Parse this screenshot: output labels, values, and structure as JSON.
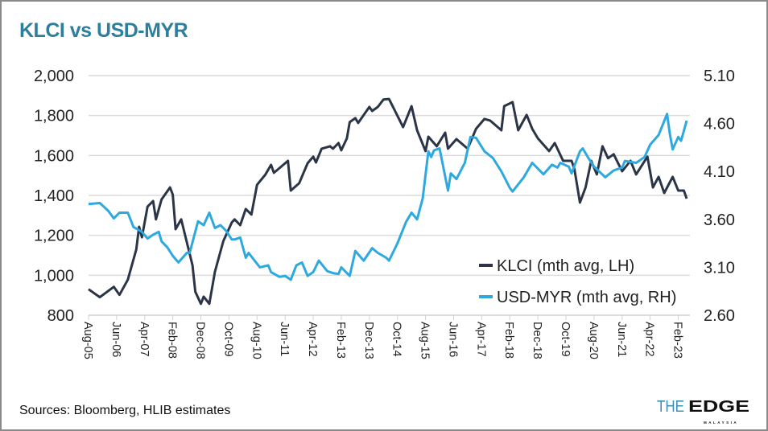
{
  "chart_data": {
    "type": "line",
    "title": "KLCI vs USD-MYR",
    "source": "Sources: Bloomberg, HLIB estimates",
    "logo": {
      "text": "THEEDGE",
      "subtext": "MALAYSIA"
    },
    "x_tick_labels": [
      "Aug-05",
      "Jun-06",
      "Apr-07",
      "Feb-08",
      "Dec-08",
      "Oct-09",
      "Aug-10",
      "Jun-11",
      "Apr-12",
      "Feb-13",
      "Dec-13",
      "Oct-14",
      "Aug-15",
      "Jun-16",
      "Apr-17",
      "Feb-18",
      "Dec-18",
      "Oct-19",
      "Aug-20",
      "Jun-21",
      "Apr-22",
      "Feb-23"
    ],
    "x_tick_dates": [
      "2005-08",
      "2006-06",
      "2007-04",
      "2008-02",
      "2008-12",
      "2009-10",
      "2010-08",
      "2011-06",
      "2012-04",
      "2013-02",
      "2013-12",
      "2014-10",
      "2015-08",
      "2016-06",
      "2017-04",
      "2018-02",
      "2018-12",
      "2019-10",
      "2020-08",
      "2021-06",
      "2022-04",
      "2023-02"
    ],
    "xlim": [
      "2005-08",
      "2023-05"
    ],
    "y_left": {
      "lim": [
        800,
        2000
      ],
      "ticks": [
        800,
        1000,
        1200,
        1400,
        1600,
        1800,
        2000
      ],
      "tick_labels": [
        "800",
        "1,000",
        "1,200",
        "1,400",
        "1,600",
        "1,800",
        "2,000"
      ]
    },
    "y_right": {
      "lim": [
        2.6,
        5.1
      ],
      "ticks": [
        2.6,
        3.1,
        3.6,
        4.1,
        4.6,
        5.1
      ],
      "tick_labels": [
        "2.60",
        "3.10",
        "3.60",
        "4.10",
        "4.60",
        "5.10"
      ]
    },
    "grid": true,
    "legend_position": "bottom-right",
    "series": [
      {
        "name": "KLCI (mth avg, LH)",
        "axis": "left",
        "color": "#2b3547",
        "points": [
          [
            "2005-08",
            930
          ],
          [
            "2005-12",
            890
          ],
          [
            "2006-05",
            942
          ],
          [
            "2006-07",
            902
          ],
          [
            "2006-10",
            978
          ],
          [
            "2007-01",
            1130
          ],
          [
            "2007-02",
            1243
          ],
          [
            "2007-03",
            1190
          ],
          [
            "2007-05",
            1344
          ],
          [
            "2007-07",
            1372
          ],
          [
            "2007-08",
            1280
          ],
          [
            "2007-10",
            1380
          ],
          [
            "2008-01",
            1440
          ],
          [
            "2008-02",
            1404
          ],
          [
            "2008-03",
            1231
          ],
          [
            "2008-05",
            1280
          ],
          [
            "2008-09",
            1050
          ],
          [
            "2008-10",
            918
          ],
          [
            "2008-12",
            857
          ],
          [
            "2009-01",
            893
          ],
          [
            "2009-03",
            857
          ],
          [
            "2009-05",
            1018
          ],
          [
            "2009-08",
            1171
          ],
          [
            "2009-11",
            1264
          ],
          [
            "2009-12",
            1280
          ],
          [
            "2010-02",
            1251
          ],
          [
            "2010-04",
            1332
          ],
          [
            "2010-06",
            1304
          ],
          [
            "2010-08",
            1453
          ],
          [
            "2010-11",
            1505
          ],
          [
            "2011-01",
            1553
          ],
          [
            "2011-02",
            1513
          ],
          [
            "2011-04",
            1537
          ],
          [
            "2011-07",
            1573
          ],
          [
            "2011-08",
            1424
          ],
          [
            "2011-11",
            1461
          ],
          [
            "2012-02",
            1561
          ],
          [
            "2012-04",
            1594
          ],
          [
            "2012-05",
            1565
          ],
          [
            "2012-07",
            1634
          ],
          [
            "2012-10",
            1646
          ],
          [
            "2012-11",
            1634
          ],
          [
            "2013-01",
            1662
          ],
          [
            "2013-02",
            1626
          ],
          [
            "2013-04",
            1686
          ],
          [
            "2013-05",
            1767
          ],
          [
            "2013-07",
            1787
          ],
          [
            "2013-08",
            1763
          ],
          [
            "2013-12",
            1843
          ],
          [
            "2014-01",
            1823
          ],
          [
            "2014-03",
            1843
          ],
          [
            "2014-05",
            1880
          ],
          [
            "2014-07",
            1883
          ],
          [
            "2014-09",
            1827
          ],
          [
            "2014-12",
            1742
          ],
          [
            "2015-03",
            1847
          ],
          [
            "2015-05",
            1726
          ],
          [
            "2015-08",
            1622
          ],
          [
            "2015-09",
            1694
          ],
          [
            "2015-12",
            1646
          ],
          [
            "2016-03",
            1714
          ],
          [
            "2016-04",
            1634
          ],
          [
            "2016-07",
            1682
          ],
          [
            "2016-11",
            1634
          ],
          [
            "2017-02",
            1734
          ],
          [
            "2017-05",
            1783
          ],
          [
            "2017-07",
            1775
          ],
          [
            "2017-11",
            1726
          ],
          [
            "2017-12",
            1847
          ],
          [
            "2018-03",
            1867
          ],
          [
            "2018-05",
            1726
          ],
          [
            "2018-08",
            1803
          ],
          [
            "2018-10",
            1734
          ],
          [
            "2018-12",
            1686
          ],
          [
            "2019-04",
            1622
          ],
          [
            "2019-06",
            1662
          ],
          [
            "2019-09",
            1573
          ],
          [
            "2019-12",
            1573
          ],
          [
            "2020-01",
            1533
          ],
          [
            "2020-03",
            1364
          ],
          [
            "2020-05",
            1440
          ],
          [
            "2020-07",
            1573
          ],
          [
            "2020-09",
            1505
          ],
          [
            "2020-11",
            1646
          ],
          [
            "2021-01",
            1586
          ],
          [
            "2021-03",
            1606
          ],
          [
            "2021-06",
            1521
          ],
          [
            "2021-09",
            1573
          ],
          [
            "2021-11",
            1505
          ],
          [
            "2022-03",
            1594
          ],
          [
            "2022-05",
            1440
          ],
          [
            "2022-07",
            1493
          ],
          [
            "2022-09",
            1412
          ],
          [
            "2022-12",
            1493
          ],
          [
            "2023-02",
            1424
          ],
          [
            "2023-04",
            1424
          ],
          [
            "2023-05",
            1384
          ]
        ]
      },
      {
        "name": "USD-MYR (mth avg, RH)",
        "axis": "right",
        "color": "#2ea9e0",
        "points": [
          [
            "2005-08",
            3.76
          ],
          [
            "2005-12",
            3.77
          ],
          [
            "2006-03",
            3.69
          ],
          [
            "2006-05",
            3.61
          ],
          [
            "2006-07",
            3.67
          ],
          [
            "2006-10",
            3.67
          ],
          [
            "2006-12",
            3.52
          ],
          [
            "2007-03",
            3.47
          ],
          [
            "2007-05",
            3.4
          ],
          [
            "2007-07",
            3.44
          ],
          [
            "2007-09",
            3.47
          ],
          [
            "2007-10",
            3.37
          ],
          [
            "2007-12",
            3.31
          ],
          [
            "2008-02",
            3.22
          ],
          [
            "2008-04",
            3.15
          ],
          [
            "2008-07",
            3.25
          ],
          [
            "2008-08",
            3.25
          ],
          [
            "2008-11",
            3.58
          ],
          [
            "2009-01",
            3.54
          ],
          [
            "2009-03",
            3.67
          ],
          [
            "2009-05",
            3.51
          ],
          [
            "2009-07",
            3.54
          ],
          [
            "2009-09",
            3.48
          ],
          [
            "2009-11",
            3.39
          ],
          [
            "2009-12",
            3.39
          ],
          [
            "2010-02",
            3.41
          ],
          [
            "2010-04",
            3.2
          ],
          [
            "2010-05",
            3.25
          ],
          [
            "2010-09",
            3.1
          ],
          [
            "2010-12",
            3.12
          ],
          [
            "2011-01",
            3.05
          ],
          [
            "2011-04",
            3.0
          ],
          [
            "2011-06",
            3.01
          ],
          [
            "2011-08",
            2.97
          ],
          [
            "2011-10",
            3.12
          ],
          [
            "2011-12",
            3.15
          ],
          [
            "2012-02",
            3.01
          ],
          [
            "2012-04",
            3.05
          ],
          [
            "2012-06",
            3.17
          ],
          [
            "2012-09",
            3.06
          ],
          [
            "2012-11",
            3.04
          ],
          [
            "2013-01",
            3.03
          ],
          [
            "2013-02",
            3.1
          ],
          [
            "2013-05",
            3.01
          ],
          [
            "2013-06",
            3.14
          ],
          [
            "2013-07",
            3.27
          ],
          [
            "2013-10",
            3.17
          ],
          [
            "2014-01",
            3.3
          ],
          [
            "2014-03",
            3.25
          ],
          [
            "2014-06",
            3.2
          ],
          [
            "2014-07",
            3.17
          ],
          [
            "2014-10",
            3.35
          ],
          [
            "2015-01",
            3.57
          ],
          [
            "2015-03",
            3.67
          ],
          [
            "2015-05",
            3.6
          ],
          [
            "2015-07",
            3.82
          ],
          [
            "2015-09",
            4.31
          ],
          [
            "2015-10",
            4.25
          ],
          [
            "2015-11",
            4.32
          ],
          [
            "2016-01",
            4.34
          ],
          [
            "2016-04",
            3.9
          ],
          [
            "2016-05",
            4.08
          ],
          [
            "2016-07",
            4.02
          ],
          [
            "2016-10",
            4.19
          ],
          [
            "2016-12",
            4.46
          ],
          [
            "2017-02",
            4.45
          ],
          [
            "2017-05",
            4.31
          ],
          [
            "2017-08",
            4.24
          ],
          [
            "2017-11",
            4.1
          ],
          [
            "2018-02",
            3.93
          ],
          [
            "2018-03",
            3.89
          ],
          [
            "2018-07",
            4.04
          ],
          [
            "2018-10",
            4.19
          ],
          [
            "2019-02",
            4.07
          ],
          [
            "2019-05",
            4.17
          ],
          [
            "2019-07",
            4.14
          ],
          [
            "2019-08",
            4.19
          ],
          [
            "2019-11",
            4.15
          ],
          [
            "2019-12",
            4.08
          ],
          [
            "2020-03",
            4.31
          ],
          [
            "2020-04",
            4.34
          ],
          [
            "2020-06",
            4.24
          ],
          [
            "2020-08",
            4.15
          ],
          [
            "2020-12",
            4.04
          ],
          [
            "2021-03",
            4.11
          ],
          [
            "2021-06",
            4.14
          ],
          [
            "2021-07",
            4.21
          ],
          [
            "2021-11",
            4.19
          ],
          [
            "2022-02",
            4.25
          ],
          [
            "2022-04",
            4.38
          ],
          [
            "2022-07",
            4.48
          ],
          [
            "2022-10",
            4.7
          ],
          [
            "2022-11",
            4.49
          ],
          [
            "2022-12",
            4.33
          ],
          [
            "2023-02",
            4.46
          ],
          [
            "2023-03",
            4.42
          ],
          [
            "2023-05",
            4.63
          ]
        ]
      }
    ]
  }
}
